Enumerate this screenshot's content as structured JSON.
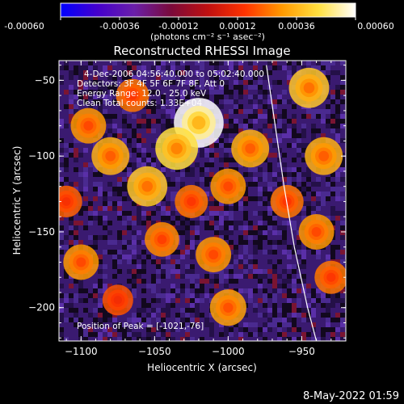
{
  "colorbar": {
    "ticks": [
      "-0.00060",
      "-0.00036",
      "-0.00012",
      "0.00012",
      "0.00036",
      "0.00060"
    ],
    "colors": [
      "#0000ff",
      "#4400cc",
      "#6a1fa8",
      "#7a0a3a",
      "#c01010",
      "#ff3300",
      "#ff9900",
      "#ffe040",
      "#ffffff"
    ],
    "unit_label": "(photons cm⁻² s⁻¹ asec⁻²)"
  },
  "plot": {
    "title": "Reconstructed RHESSI Image",
    "xlabel": "Heliocentric X (arcsec)",
    "ylabel": "Heliocentric Y (arcsec)",
    "info_lines": [
      "4-Dec-2006 04:56:40.000 to 05:02:40.000",
      "Detectors: 3F 4F 5F 6F 7F 8F, Att 0",
      "Energy Range: 12.0 - 25.0 keV",
      "Clean    Total counts: 1.33E+04"
    ],
    "peak_label": "Position of Peak = [-1021,-76]"
  },
  "footer": {
    "date": "8-May-2022 01:59"
  },
  "chart_data": {
    "type": "heatmap",
    "title": "Reconstructed RHESSI Image",
    "xlabel": "Heliocentric X (arcsec)",
    "ylabel": "Heliocentric Y (arcsec)",
    "xlim": [
      -1115,
      -920
    ],
    "ylim": [
      -222,
      -37
    ],
    "xticks": [
      -1100,
      -1050,
      -1000,
      -950
    ],
    "yticks": [
      -50,
      -100,
      -150,
      -200
    ],
    "xtick_labels": [
      "−1100",
      "−1050",
      "−1000",
      "−950"
    ],
    "ytick_labels": [
      "−50",
      "−100",
      "−150",
      "−200"
    ],
    "zlim": [
      -0.0006,
      0.0006
    ],
    "zunits": "photons cm^-2 s^-1 asec^-2",
    "peak": [
      -1021,
      -76
    ],
    "limb_points": [
      [
        -974,
        -40
      ],
      [
        -968,
        -80
      ],
      [
        -962,
        -120
      ],
      [
        -955,
        -160
      ],
      [
        -946,
        -200
      ],
      [
        -940,
        -222
      ]
    ],
    "blobs": [
      {
        "x": -1020,
        "y": -78,
        "value": 0.0006
      },
      {
        "x": -1035,
        "y": -95,
        "value": 0.00045
      },
      {
        "x": -1055,
        "y": -120,
        "value": 0.0004
      },
      {
        "x": -1080,
        "y": -100,
        "value": 0.00035
      },
      {
        "x": -1095,
        "y": -80,
        "value": 0.0003
      },
      {
        "x": -1000,
        "y": -120,
        "value": 0.0003
      },
      {
        "x": -985,
        "y": -95,
        "value": 0.00035
      },
      {
        "x": -1065,
        "y": -60,
        "value": 0.00025
      },
      {
        "x": -945,
        "y": -55,
        "value": 0.0004
      },
      {
        "x": -935,
        "y": -100,
        "value": 0.00035
      },
      {
        "x": -940,
        "y": -150,
        "value": 0.0003
      },
      {
        "x": -930,
        "y": -180,
        "value": 0.00025
      },
      {
        "x": -1100,
        "y": -170,
        "value": 0.0003
      },
      {
        "x": -1045,
        "y": -155,
        "value": 0.00028
      },
      {
        "x": -1010,
        "y": -165,
        "value": 0.0003
      },
      {
        "x": -1000,
        "y": -200,
        "value": 0.00032
      },
      {
        "x": -960,
        "y": -130,
        "value": 0.00025
      },
      {
        "x": -1075,
        "y": -195,
        "value": 0.0002
      },
      {
        "x": -1025,
        "y": -130,
        "value": 0.00025
      },
      {
        "x": -1110,
        "y": -130,
        "value": 0.00022
      }
    ]
  }
}
